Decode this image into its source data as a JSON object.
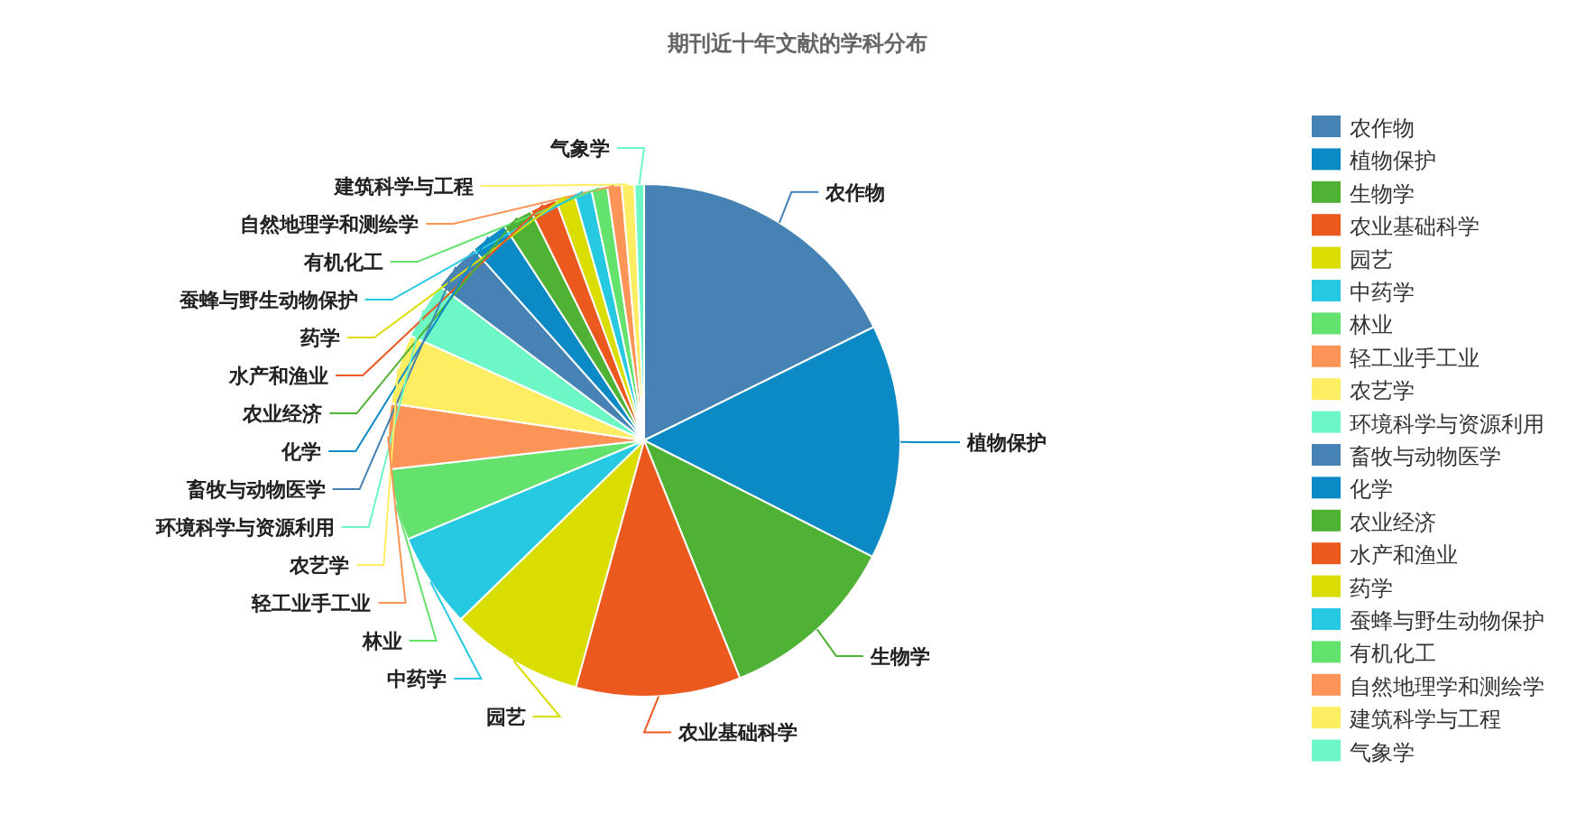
{
  "chart_data": {
    "type": "pie",
    "title": "期刊近十年文献的学科分布",
    "legend": "right",
    "categories": [
      "农作物",
      "植物保护",
      "生物学",
      "农业基础科学",
      "园艺",
      "中药学",
      "林业",
      "轻工业手工业",
      "农艺学",
      "环境科学与资源利用",
      "畜牧与动物医学",
      "化学",
      "农业经济",
      "水产和渔业",
      "药学",
      "蚕蜂与野生动物保护",
      "有机化工",
      "自然地理学和测绘学",
      "建筑科学与工程",
      "气象学"
    ],
    "values": [
      17.7,
      14.8,
      11.4,
      10.4,
      8.4,
      6.0,
      4.5,
      4.1,
      4.4,
      3.6,
      3.1,
      2.4,
      1.9,
      1.7,
      1.2,
      1.1,
      1.0,
      0.9,
      0.8,
      0.6
    ],
    "colors": [
      "#4682b4",
      "#0b8ac6",
      "#4fb234",
      "#ec591f",
      "#d9dd00",
      "#27c9e2",
      "#64e26e",
      "#fb9456",
      "#fded62",
      "#6ef7c6",
      "#4682b4",
      "#0b8ac6",
      "#4fb234",
      "#ec591f",
      "#d9dd00",
      "#27c9e2",
      "#64e26e",
      "#fb9456",
      "#fded62",
      "#6ef7c6"
    ]
  }
}
